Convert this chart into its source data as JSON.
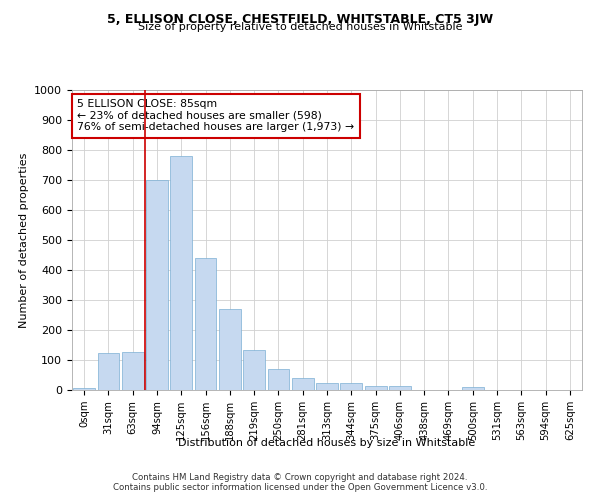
{
  "title": "5, ELLISON CLOSE, CHESTFIELD, WHITSTABLE, CT5 3JW",
  "subtitle": "Size of property relative to detached houses in Whitstable",
  "xlabel": "Distribution of detached houses by size in Whitstable",
  "ylabel": "Number of detached properties",
  "bar_color": "#c6d9f0",
  "bar_edge_color": "#7bafd4",
  "bar_values": [
    8,
    125,
    128,
    700,
    780,
    440,
    270,
    135,
    70,
    40,
    25,
    25,
    13,
    13,
    0,
    0,
    10,
    0,
    0,
    0,
    0
  ],
  "categories": [
    "0sqm",
    "31sqm",
    "63sqm",
    "94sqm",
    "125sqm",
    "156sqm",
    "188sqm",
    "219sqm",
    "250sqm",
    "281sqm",
    "313sqm",
    "344sqm",
    "375sqm",
    "406sqm",
    "438sqm",
    "469sqm",
    "500sqm",
    "531sqm",
    "563sqm",
    "594sqm",
    "625sqm"
  ],
  "ylim": [
    0,
    1000
  ],
  "yticks": [
    0,
    100,
    200,
    300,
    400,
    500,
    600,
    700,
    800,
    900,
    1000
  ],
  "property_label": "5 ELLISON CLOSE: 85sqm",
  "pct_smaller": "23% of detached houses are smaller (598)",
  "pct_larger": "76% of semi-detached houses are larger (1,973)",
  "vline_bin_index": 3,
  "annotation_box_color": "#cc0000",
  "footer1": "Contains HM Land Registry data © Crown copyright and database right 2024.",
  "footer2": "Contains public sector information licensed under the Open Government Licence v3.0.",
  "background_color": "#ffffff",
  "grid_color": "#d0d0d0"
}
